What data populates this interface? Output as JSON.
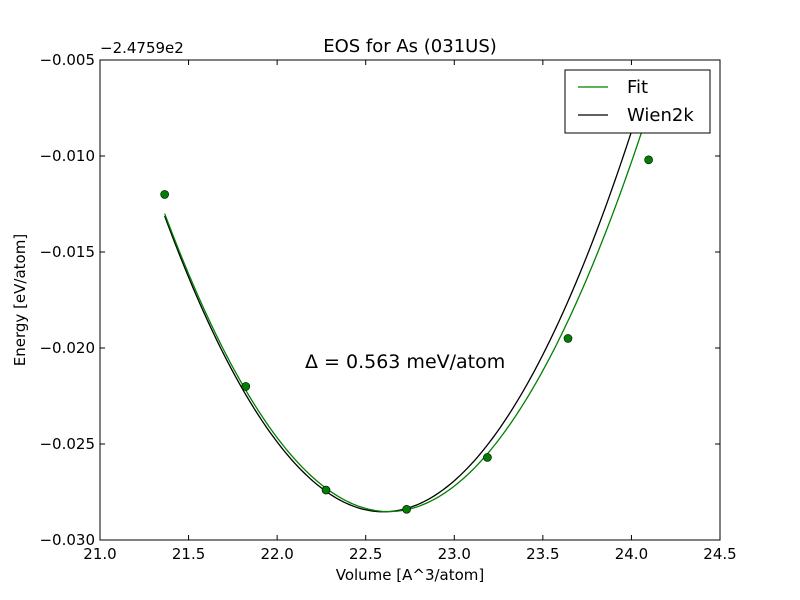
{
  "chart_data": {
    "type": "line",
    "title": "EOS for As (031US)",
    "xlabel": "Volume [A^3/atom]",
    "ylabel": "Energy [eV/atom]",
    "y_offset_label": "−2.4759e2",
    "annotation": "Δ = 0.563 meV/atom",
    "xlim": [
      21.0,
      24.5
    ],
    "ylim": [
      -0.03,
      -0.005
    ],
    "x_ticks": [
      21.0,
      21.5,
      22.0,
      22.5,
      23.0,
      23.5,
      24.0,
      24.5
    ],
    "x_tick_labels": [
      "21.0",
      "21.5",
      "22.0",
      "22.5",
      "23.0",
      "23.5",
      "24.0",
      "24.5"
    ],
    "y_ticks": [
      -0.03,
      -0.025,
      -0.02,
      -0.015,
      -0.01,
      -0.005
    ],
    "y_tick_labels": [
      "−0.030",
      "−0.025",
      "−0.020",
      "−0.015",
      "−0.010",
      "−0.005"
    ],
    "legend_position": "top-right",
    "series": [
      {
        "name": "Fit",
        "color": "#008000",
        "points_x": [
          21.365,
          21.823,
          22.276,
          22.731,
          23.187,
          23.642,
          24.097
        ],
        "points_y": [
          -0.012,
          -0.022,
          -0.0274,
          -0.0284,
          -0.0257,
          -0.0195,
          -0.0102
        ],
        "curve": {
          "V0": 22.63,
          "E0": -0.02852,
          "B": 0.0097,
          "Bp": 0.0,
          "x_range": [
            21.365,
            24.097
          ]
        }
      },
      {
        "name": "Wien2k",
        "color": "#000000",
        "curve": {
          "V0": 22.6,
          "E0": -0.02853,
          "B": 0.0101,
          "Bp": 0.0,
          "x_range": [
            21.365,
            24.097
          ]
        }
      }
    ]
  }
}
